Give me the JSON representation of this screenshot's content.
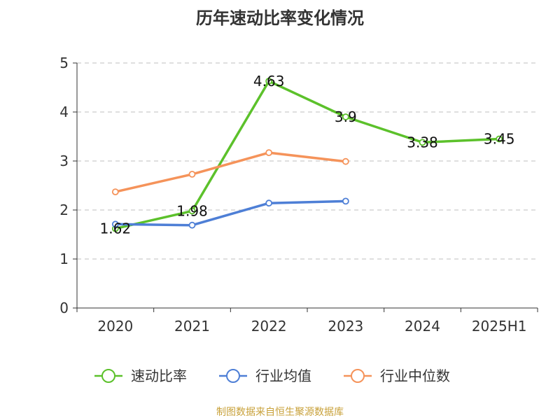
{
  "chart_data": {
    "type": "line",
    "title": "历年速动比率变化情况",
    "categories": [
      "2020",
      "2021",
      "2022",
      "2023",
      "2024",
      "2025H1"
    ],
    "ylim": [
      0,
      5
    ],
    "yticks": [
      0,
      1,
      2,
      3,
      4,
      5
    ],
    "grid": true,
    "legend_position": "bottom",
    "series": [
      {
        "name": "速动比率",
        "color": "#5cc12b",
        "values": [
          1.62,
          1.98,
          4.63,
          3.9,
          3.38,
          3.45
        ],
        "labels": [
          "1.62",
          "1.98",
          "4.63",
          "3.9",
          "3.38",
          "3.45"
        ]
      },
      {
        "name": "行业均值",
        "color": "#4e7fd6",
        "values": [
          1.71,
          1.69,
          2.14,
          2.18,
          null,
          null
        ]
      },
      {
        "name": "行业中位数",
        "color": "#f5935a",
        "values": [
          2.37,
          2.73,
          3.17,
          2.99,
          null,
          null
        ]
      }
    ]
  },
  "source": "制图数据来自恒生聚源数据库"
}
